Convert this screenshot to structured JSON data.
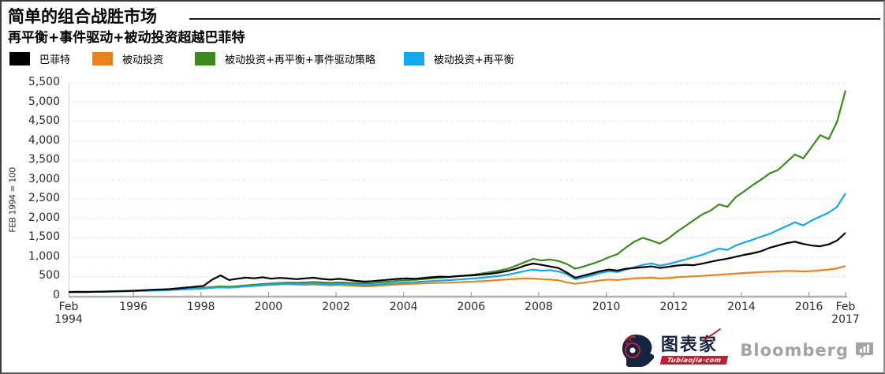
{
  "header": {
    "title": "简单的组合战胜市场",
    "subtitle": "再平衡+事件驱动+被动投资超越巴菲特"
  },
  "legend": [
    {
      "label": "巴菲特",
      "color": "#000000"
    },
    {
      "label": "被动投资",
      "color": "#E8821D"
    },
    {
      "label": "被动投资+再平衡+事件驱动策略",
      "color": "#3C8A1E"
    },
    {
      "label": "被动投资+再平衡",
      "color": "#14A7EC"
    }
  ],
  "chart_data": {
    "type": "line",
    "title": "简单的组合战胜市场",
    "subtitle": "再平衡+事件驱动+被动投资超越巴菲特",
    "ylabel": "FEB 1994 = 100",
    "ylim": [
      0,
      5500
    ],
    "ytick_step": 500,
    "yticks": [
      "0",
      "500",
      "1,000",
      "1,500",
      "2,000",
      "2,500",
      "3,000",
      "3,500",
      "4,000",
      "4,500",
      "5,000",
      "5,500"
    ],
    "grid": "dotted-horizontal",
    "legend_position": "top-left",
    "x_start": 1994.083,
    "x_step": 0.25,
    "x_end": 2017.083,
    "xticks": [
      {
        "year": 1994.083,
        "line1": "Feb",
        "line2": "1994"
      },
      {
        "year": 1996,
        "line1": "1996"
      },
      {
        "year": 1998,
        "line1": "1998"
      },
      {
        "year": 2000,
        "line1": "2000"
      },
      {
        "year": 2002,
        "line1": "2002"
      },
      {
        "year": 2004,
        "line1": "2004"
      },
      {
        "year": 2006,
        "line1": "2006"
      },
      {
        "year": 2008,
        "line1": "2008"
      },
      {
        "year": 2010,
        "line1": "2010"
      },
      {
        "year": 2012,
        "line1": "2012"
      },
      {
        "year": 2014,
        "line1": "2014"
      },
      {
        "year": 2016,
        "line1": "2016"
      },
      {
        "year": 2017.083,
        "line1": "Feb",
        "line2": "2017"
      }
    ],
    "series": [
      {
        "name": "巴菲特",
        "color": "#000000",
        "values": [
          100,
          103,
          100,
          105,
          110,
          116,
          123,
          129,
          136,
          148,
          158,
          166,
          176,
          196,
          216,
          236,
          260,
          420,
          530,
          410,
          445,
          470,
          455,
          480,
          445,
          465,
          450,
          432,
          452,
          468,
          438,
          420,
          440,
          418,
          388,
          368,
          380,
          400,
          422,
          440,
          452,
          440,
          462,
          480,
          498,
          488,
          510,
          522,
          532,
          552,
          572,
          602,
          645,
          700,
          780,
          835,
          800,
          760,
          720,
          600,
          470,
          525,
          580,
          640,
          680,
          652,
          700,
          722,
          742,
          762,
          722,
          752,
          782,
          802,
          792,
          832,
          880,
          922,
          962,
          1010,
          1060,
          1100,
          1152,
          1240,
          1300,
          1360,
          1400,
          1340,
          1300,
          1282,
          1330,
          1430,
          1630
        ]
      },
      {
        "name": "被动投资",
        "color": "#E8821D",
        "values": [
          100,
          101,
          103,
          105,
          108,
          112,
          116,
          120,
          125,
          130,
          136,
          143,
          151,
          161,
          171,
          181,
          191,
          206,
          221,
          211,
          226,
          241,
          256,
          271,
          286,
          296,
          301,
          291,
          286,
          296,
          281,
          271,
          281,
          271,
          256,
          246,
          251,
          266,
          281,
          296,
          306,
          311,
          321,
          331,
          336,
          341,
          351,
          361,
          371,
          381,
          396,
          411,
          426,
          441,
          451,
          446,
          431,
          421,
          401,
          351,
          311,
          341,
          371,
          401,
          421,
          411,
          431,
          451,
          461,
          471,
          451,
          461,
          481,
          496,
          506,
          516,
          531,
          546,
          561,
          576,
          591,
          601,
          616,
          626,
          636,
          646,
          641,
          631,
          641,
          661,
          681,
          711,
          775
        ]
      },
      {
        "name": "被动投资+再平衡+事件驱动策略",
        "color": "#3C8A1E",
        "values": [
          100,
          101,
          103,
          106,
          110,
          115,
          120,
          126,
          132,
          139,
          146,
          154,
          163,
          175,
          188,
          200,
          212,
          230,
          248,
          236,
          253,
          270,
          288,
          305,
          320,
          335,
          345,
          340,
          346,
          356,
          346,
          336,
          346,
          340,
          330,
          321,
          331,
          351,
          371,
          391,
          406,
          416,
          431,
          451,
          471,
          486,
          506,
          526,
          551,
          581,
          616,
          651,
          700,
          780,
          870,
          955,
          915,
          940,
          900,
          820,
          700,
          760,
          830,
          905,
          1000,
          1080,
          1250,
          1400,
          1500,
          1430,
          1350,
          1480,
          1650,
          1800,
          1950,
          2100,
          2200,
          2360,
          2300,
          2550,
          2700,
          2860,
          3000,
          3160,
          3250,
          3450,
          3650,
          3550,
          3850,
          4150,
          4050,
          4500,
          5300
        ]
      },
      {
        "name": "被动投资+再平衡",
        "color": "#14A7EC",
        "values": [
          100,
          101,
          102,
          104,
          107,
          111,
          115,
          119,
          124,
          130,
          137,
          144,
          152,
          163,
          174,
          185,
          196,
          212,
          228,
          218,
          233,
          248,
          264,
          280,
          295,
          308,
          315,
          308,
          312,
          322,
          310,
          300,
          310,
          302,
          288,
          278,
          285,
          300,
          318,
          335,
          348,
          355,
          368,
          382,
          395,
          405,
          420,
          435,
          450,
          470,
          490,
          515,
          545,
          590,
          640,
          680,
          650,
          665,
          630,
          560,
          430,
          480,
          530,
          590,
          640,
          615,
          680,
          740,
          800,
          840,
          780,
          820,
          880,
          940,
          1000,
          1060,
          1140,
          1220,
          1190,
          1300,
          1380,
          1450,
          1530,
          1600,
          1700,
          1800,
          1900,
          1820,
          1950,
          2050,
          2150,
          2300,
          2650
        ]
      }
    ]
  },
  "footer": {
    "tubiaojia_name": "图表家",
    "tubiaojia_site": "Tubiaojia·com",
    "bloomberg": "Bloomberg"
  }
}
